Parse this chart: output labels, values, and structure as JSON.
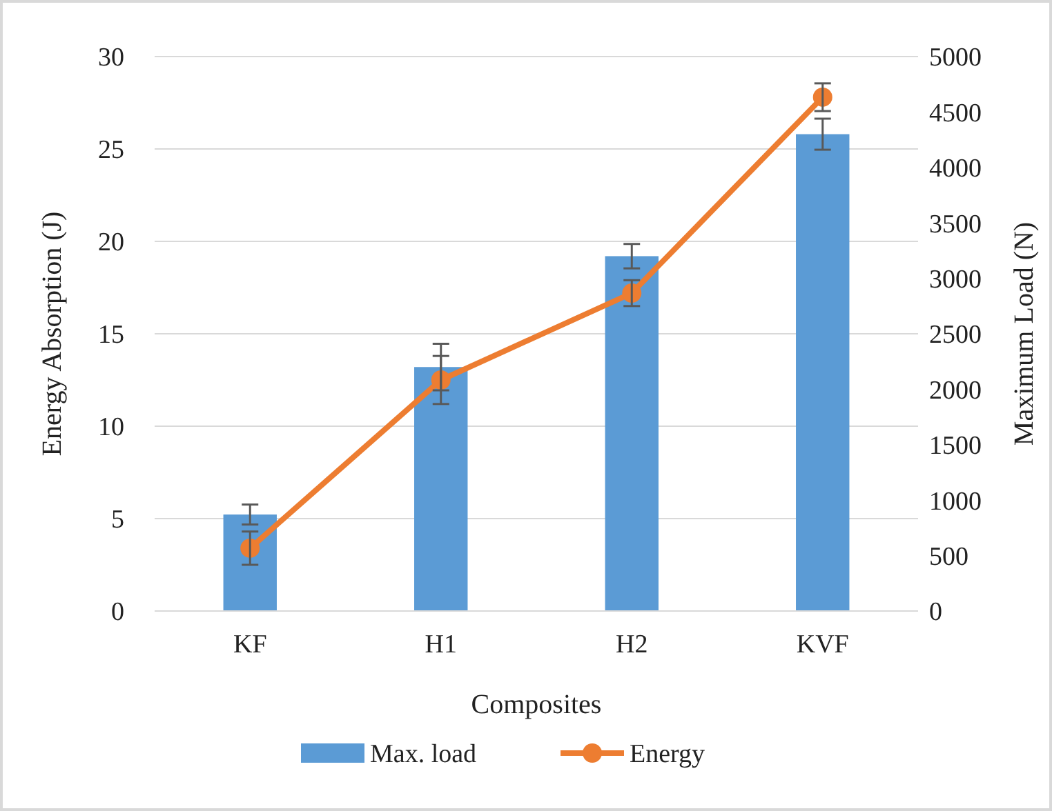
{
  "chart_data": {
    "type": "bar",
    "xlabel": "Composites",
    "ylabel": "Energy Absorption (J)",
    "y2label": "Maximum Load (N)",
    "categories": [
      "KF",
      "H1",
      "H2",
      "KVF"
    ],
    "series": [
      {
        "name": "Max. load",
        "axis": "y2",
        "color": "#5b9bd5",
        "values": [
          870,
          2200,
          3200,
          4300
        ],
        "errors": [
          90,
          210,
          110,
          140
        ]
      },
      {
        "name": "Energy",
        "type": "line",
        "axis": "y",
        "color": "#ed7d31",
        "values": [
          3.4,
          12.5,
          17.2,
          27.8
        ],
        "errors": [
          0.9,
          1.3,
          0.7,
          0.75
        ],
        "marker": "circle"
      }
    ],
    "ylim": [
      0,
      30
    ],
    "yticks": [
      0,
      5,
      10,
      15,
      20,
      25,
      30
    ],
    "y2lim": [
      0,
      5000
    ],
    "y2ticks": [
      0,
      500,
      1000,
      1500,
      2000,
      2500,
      3000,
      3500,
      4000,
      4500,
      5000
    ],
    "grid": "y",
    "legend": "bottom"
  }
}
